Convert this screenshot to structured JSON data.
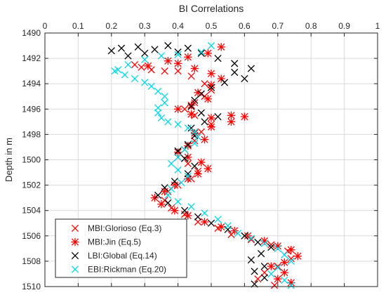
{
  "chart_data": {
    "type": "scatter",
    "title": "BI Correlations",
    "xlabel": "",
    "ylabel": "Depth in m",
    "xlim": [
      0,
      1
    ],
    "ylim": [
      1490,
      1510
    ],
    "y_reversed": true,
    "x_axis_location": "top",
    "xticks": [
      "0",
      "0.1",
      "0.2",
      "0.3",
      "0.4",
      "0.5",
      "0.6",
      "0.7",
      "0.8",
      "0.9",
      "1"
    ],
    "yticks": [
      "1490",
      "1492",
      "1494",
      "1496",
      "1498",
      "1500",
      "1502",
      "1504",
      "1506",
      "1508",
      "1510"
    ],
    "grid": true,
    "legend_placement": "bottom-left",
    "series": [
      {
        "name": "MBI:Glorioso (Eq.3)",
        "color": "#ff0000",
        "marker": "x",
        "points": [
          [
            0.27,
            1492.5
          ],
          [
            0.29,
            1492.7
          ],
          [
            0.32,
            1492.9
          ],
          [
            0.36,
            1493.0
          ],
          [
            0.4,
            1493.0
          ],
          [
            0.44,
            1493.4
          ],
          [
            0.48,
            1494.0
          ],
          [
            0.5,
            1494.5
          ],
          [
            0.48,
            1495.0
          ],
          [
            0.45,
            1495.5
          ],
          [
            0.42,
            1496.0
          ],
          [
            0.45,
            1496.5
          ],
          [
            0.5,
            1497.2
          ],
          [
            0.47,
            1497.8
          ],
          [
            0.45,
            1498.5
          ],
          [
            0.42,
            1499.2
          ],
          [
            0.4,
            1499.8
          ],
          [
            0.43,
            1500.3
          ],
          [
            0.46,
            1500.9
          ],
          [
            0.44,
            1501.5
          ],
          [
            0.4,
            1502.0
          ],
          [
            0.37,
            1502.5
          ],
          [
            0.36,
            1503.2
          ],
          [
            0.38,
            1503.8
          ],
          [
            0.42,
            1504.3
          ],
          [
            0.46,
            1504.9
          ],
          [
            0.52,
            1505.4
          ],
          [
            0.56,
            1505.9
          ],
          [
            0.62,
            1506.3
          ],
          [
            0.68,
            1506.7
          ],
          [
            0.73,
            1507.2
          ],
          [
            0.74,
            1507.8
          ],
          [
            0.7,
            1508.4
          ],
          [
            0.66,
            1508.9
          ],
          [
            0.64,
            1509.4
          ],
          [
            0.69,
            1509.9
          ]
        ]
      },
      {
        "name": "MBI:Jin (Eq.5)",
        "color": "#ff0000",
        "marker": "star",
        "points": [
          [
            0.53,
            1491.1
          ],
          [
            0.49,
            1491.6
          ],
          [
            0.43,
            1491.9
          ],
          [
            0.37,
            1492.2
          ],
          [
            0.31,
            1492.6
          ],
          [
            0.4,
            1492.4
          ],
          [
            0.45,
            1492.8
          ],
          [
            0.5,
            1493.2
          ],
          [
            0.53,
            1493.6
          ],
          [
            0.5,
            1494.1
          ],
          [
            0.46,
            1494.7
          ],
          [
            0.49,
            1495.2
          ],
          [
            0.44,
            1495.7
          ],
          [
            0.4,
            1496.0
          ],
          [
            0.44,
            1496.4
          ],
          [
            0.5,
            1496.7
          ],
          [
            0.56,
            1496.5
          ],
          [
            0.6,
            1496.6
          ],
          [
            0.56,
            1497.0
          ],
          [
            0.5,
            1497.4
          ],
          [
            0.45,
            1497.9
          ],
          [
            0.48,
            1498.4
          ],
          [
            0.43,
            1498.9
          ],
          [
            0.4,
            1499.4
          ],
          [
            0.43,
            1499.8
          ],
          [
            0.47,
            1500.2
          ],
          [
            0.49,
            1500.7
          ],
          [
            0.46,
            1501.1
          ],
          [
            0.43,
            1501.5
          ],
          [
            0.39,
            1502.0
          ],
          [
            0.36,
            1502.5
          ],
          [
            0.33,
            1503.0
          ],
          [
            0.35,
            1503.5
          ],
          [
            0.39,
            1504.0
          ],
          [
            0.43,
            1504.4
          ],
          [
            0.48,
            1504.9
          ],
          [
            0.53,
            1505.3
          ],
          [
            0.57,
            1505.6
          ],
          [
            0.61,
            1506.0
          ],
          [
            0.66,
            1506.4
          ],
          [
            0.7,
            1506.8
          ],
          [
            0.74,
            1507.1
          ],
          [
            0.76,
            1507.6
          ],
          [
            0.72,
            1508.1
          ],
          [
            0.68,
            1508.4
          ],
          [
            0.72,
            1508.9
          ],
          [
            0.7,
            1509.4
          ],
          [
            0.74,
            1509.7
          ]
        ]
      },
      {
        "name": "LBI:Global (Eq.14)",
        "color": "#000000",
        "marker": "x",
        "points": [
          [
            0.2,
            1491.4
          ],
          [
            0.23,
            1491.2
          ],
          [
            0.25,
            1491.8
          ],
          [
            0.28,
            1491.1
          ],
          [
            0.3,
            1491.6
          ],
          [
            0.33,
            1491.3
          ],
          [
            0.37,
            1491.0
          ],
          [
            0.4,
            1491.5
          ],
          [
            0.43,
            1491.2
          ],
          [
            0.47,
            1491.6
          ],
          [
            0.52,
            1492.0
          ],
          [
            0.57,
            1492.4
          ],
          [
            0.62,
            1492.8
          ],
          [
            0.57,
            1493.1
          ],
          [
            0.6,
            1493.6
          ],
          [
            0.54,
            1493.9
          ],
          [
            0.5,
            1494.3
          ],
          [
            0.47,
            1494.8
          ],
          [
            0.45,
            1495.3
          ],
          [
            0.44,
            1495.8
          ],
          [
            0.47,
            1496.3
          ],
          [
            0.52,
            1496.6
          ],
          [
            0.48,
            1497.0
          ],
          [
            0.44,
            1497.5
          ],
          [
            0.45,
            1498.1
          ],
          [
            0.43,
            1498.8
          ],
          [
            0.4,
            1499.3
          ],
          [
            0.42,
            1499.9
          ],
          [
            0.45,
            1500.5
          ],
          [
            0.43,
            1501.1
          ],
          [
            0.39,
            1501.7
          ],
          [
            0.36,
            1502.2
          ],
          [
            0.34,
            1502.8
          ],
          [
            0.37,
            1503.4
          ],
          [
            0.42,
            1504.0
          ],
          [
            0.46,
            1504.5
          ],
          [
            0.5,
            1505.0
          ],
          [
            0.55,
            1505.5
          ],
          [
            0.6,
            1506.0
          ],
          [
            0.64,
            1506.5
          ],
          [
            0.68,
            1506.9
          ],
          [
            0.65,
            1507.4
          ],
          [
            0.62,
            1507.9
          ],
          [
            0.66,
            1508.4
          ],
          [
            0.63,
            1508.8
          ],
          [
            0.66,
            1509.3
          ],
          [
            0.63,
            1509.8
          ]
        ]
      },
      {
        "name": "EBI:Rickman (Eq.20)",
        "color": "#00d8e8",
        "marker": "x",
        "points": [
          [
            0.5,
            1491.0
          ],
          [
            0.47,
            1491.5
          ],
          [
            0.4,
            1491.7
          ],
          [
            0.35,
            1491.8
          ],
          [
            0.3,
            1492.1
          ],
          [
            0.25,
            1492.5
          ],
          [
            0.22,
            1492.9
          ],
          [
            0.21,
            1493.0
          ],
          [
            0.24,
            1493.3
          ],
          [
            0.27,
            1493.6
          ],
          [
            0.3,
            1493.9
          ],
          [
            0.32,
            1494.2
          ],
          [
            0.34,
            1494.6
          ],
          [
            0.36,
            1495.0
          ],
          [
            0.36,
            1495.5
          ],
          [
            0.34,
            1495.9
          ],
          [
            0.34,
            1496.3
          ],
          [
            0.35,
            1496.7
          ],
          [
            0.37,
            1497.0
          ],
          [
            0.4,
            1497.2
          ],
          [
            0.43,
            1497.5
          ],
          [
            0.45,
            1497.8
          ],
          [
            0.46,
            1498.2
          ],
          [
            0.45,
            1498.7
          ],
          [
            0.42,
            1499.2
          ],
          [
            0.4,
            1499.8
          ],
          [
            0.38,
            1500.3
          ],
          [
            0.4,
            1500.8
          ],
          [
            0.43,
            1501.3
          ],
          [
            0.41,
            1501.8
          ],
          [
            0.38,
            1502.3
          ],
          [
            0.37,
            1502.8
          ],
          [
            0.4,
            1503.3
          ],
          [
            0.44,
            1503.7
          ],
          [
            0.48,
            1504.2
          ],
          [
            0.52,
            1504.7
          ],
          [
            0.55,
            1505.2
          ],
          [
            0.58,
            1505.8
          ],
          [
            0.62,
            1506.2
          ],
          [
            0.66,
            1506.6
          ],
          [
            0.7,
            1507.0
          ],
          [
            0.72,
            1507.5
          ],
          [
            0.74,
            1508.0
          ],
          [
            0.7,
            1508.5
          ],
          [
            0.68,
            1509.0
          ],
          [
            0.72,
            1509.5
          ],
          [
            0.74,
            1509.9
          ]
        ]
      }
    ]
  }
}
